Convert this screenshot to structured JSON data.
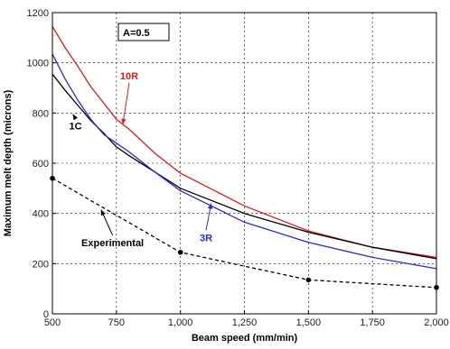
{
  "chart_data": {
    "type": "line",
    "xlabel": "Beam speed (mm/min)",
    "ylabel": "Maximum melt depth (microns)",
    "xlim": [
      500,
      2000
    ],
    "ylim": [
      0,
      1200
    ],
    "x_ticks": [
      500,
      750,
      1000,
      1250,
      1500,
      1750,
      2000
    ],
    "x_tick_labels": [
      "500",
      "750",
      "1,000",
      "1,250",
      "1,500",
      "1,750",
      "2,000"
    ],
    "y_ticks": [
      0,
      200,
      400,
      600,
      800,
      1000,
      1200
    ],
    "y_tick_labels": [
      "0",
      "200",
      "400",
      "600",
      "800",
      "1000",
      "1200"
    ],
    "grid": true,
    "series": [
      {
        "name": "10R",
        "color": "#e01b1b",
        "style": "solid",
        "x": [
          500,
          550,
          600,
          650,
          700,
          750,
          800,
          900,
          1000,
          1250,
          1500,
          1750,
          2000
        ],
        "y": [
          1145,
          1060,
          985,
          905,
          840,
          775,
          735,
          640,
          560,
          430,
          330,
          265,
          225
        ]
      },
      {
        "name": "1C",
        "color": "#000000",
        "style": "solid",
        "x": [
          500,
          550,
          600,
          650,
          700,
          750,
          800,
          900,
          1000,
          1250,
          1500,
          1750,
          2000
        ],
        "y": [
          955,
          890,
          830,
          770,
          720,
          665,
          630,
          565,
          500,
          400,
          325,
          265,
          220
        ]
      },
      {
        "name": "3R",
        "color": "#2a2ad8",
        "style": "solid",
        "x": [
          500,
          550,
          600,
          650,
          700,
          750,
          800,
          900,
          1000,
          1250,
          1500,
          1750,
          2000
        ],
        "y": [
          1035,
          935,
          850,
          775,
          715,
          680,
          645,
          565,
          490,
          365,
          285,
          225,
          180
        ]
      },
      {
        "name": "Experimental",
        "color": "#000000",
        "style": "dashed",
        "markers": true,
        "x": [
          500,
          1000,
          1500,
          2000
        ],
        "y": [
          540,
          245,
          135,
          105
        ]
      }
    ],
    "box_label": "A=0.5",
    "annotations": [
      {
        "text": "10R",
        "color": "#e01b1b",
        "tx": 800,
        "ty": 935,
        "ax": 775,
        "ay": 755
      },
      {
        "text": "1C",
        "color": "#000000",
        "tx": 590,
        "ty": 735,
        "ax": 580,
        "ay": 795
      },
      {
        "text": "3R",
        "color": "#2a2ad8",
        "tx": 1100,
        "ty": 290,
        "ax": 1120,
        "ay": 440
      },
      {
        "text": "Experimental",
        "color": "#000000",
        "tx": 735,
        "ty": 270,
        "ax": 690,
        "ay": 415
      }
    ]
  }
}
